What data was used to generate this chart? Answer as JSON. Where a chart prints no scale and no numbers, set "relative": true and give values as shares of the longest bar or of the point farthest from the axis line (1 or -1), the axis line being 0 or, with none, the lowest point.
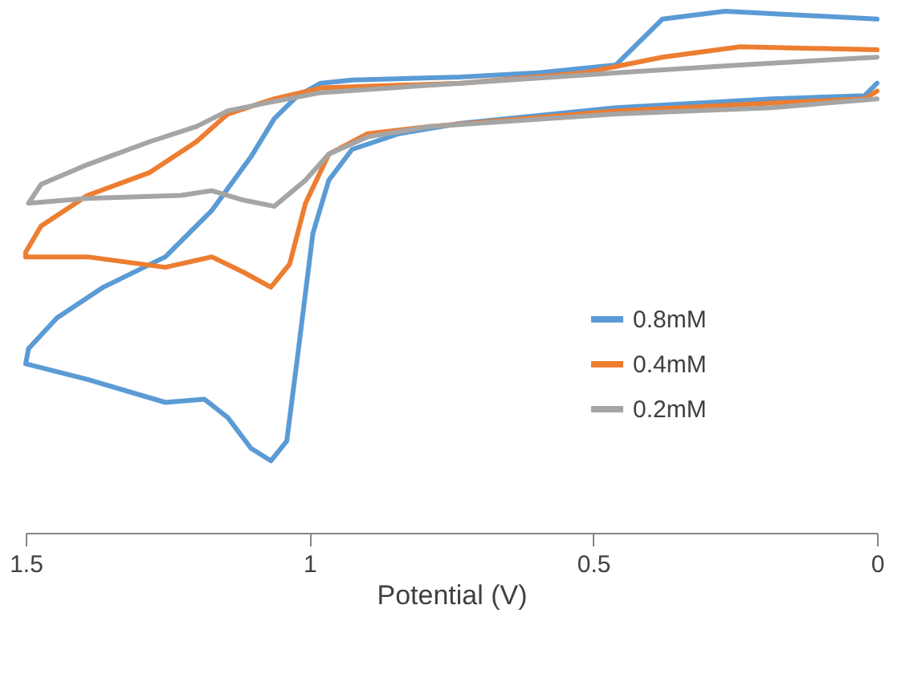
{
  "chart_data": {
    "type": "line",
    "relative": true,
    "xlabel": "Potential (V)",
    "xlim": [
      1.5,
      0
    ],
    "xticks": [
      1.5,
      1,
      0.5,
      0
    ],
    "grid": false,
    "legend": "right",
    "marker": "none",
    "line_style": "solid",
    "series": [
      {
        "name": "0.8mM",
        "color": "#5b9bd5",
        "x": [
          0,
          0.268,
          0.378,
          0.46,
          0.597,
          0.734,
          0.925,
          0.98,
          1.021,
          1.062,
          1.103,
          1.172,
          1.254,
          1.363,
          1.445,
          1.495,
          1.5,
          1.391,
          1.254,
          1.185,
          1.144,
          1.103,
          1.068,
          1.04,
          1.021,
          0.994,
          0.966,
          0.925,
          0.843,
          0.734,
          0.46,
          0.186,
          0.022,
          0
        ],
        "values": [
          0.985,
          1.0,
          0.985,
          0.897,
          0.882,
          0.874,
          0.868,
          0.862,
          0.838,
          0.794,
          0.721,
          0.618,
          0.529,
          0.471,
          0.412,
          0.353,
          0.324,
          0.294,
          0.25,
          0.256,
          0.221,
          0.162,
          0.138,
          0.176,
          0.338,
          0.574,
          0.676,
          0.735,
          0.765,
          0.785,
          0.815,
          0.832,
          0.838,
          0.862
        ]
      },
      {
        "name": "0.4mM",
        "color": "#ed7d31",
        "x": [
          0,
          0.241,
          0.378,
          0.515,
          0.734,
          0.98,
          1.062,
          1.144,
          1.199,
          1.281,
          1.391,
          1.473,
          1.5,
          1.5,
          1.391,
          1.254,
          1.172,
          1.117,
          1.068,
          1.035,
          1.007,
          0.966,
          0.898,
          0.788,
          0.46,
          0.186,
          0.022,
          0
        ],
        "values": [
          0.926,
          0.932,
          0.912,
          0.882,
          0.862,
          0.853,
          0.832,
          0.803,
          0.75,
          0.691,
          0.647,
          0.588,
          0.538,
          0.529,
          0.529,
          0.509,
          0.529,
          0.5,
          0.471,
          0.515,
          0.632,
          0.726,
          0.765,
          0.779,
          0.809,
          0.824,
          0.832,
          0.847
        ]
      },
      {
        "name": "0.2mM",
        "color": "#a5a5a5",
        "x": [
          0,
          0.241,
          0.46,
          0.734,
          0.98,
          1.076,
          1.144,
          1.199,
          1.281,
          1.391,
          1.473,
          1.495,
          1.391,
          1.226,
          1.172,
          1.117,
          1.062,
          1.007,
          0.966,
          0.898,
          0.788,
          0.46,
          0.186,
          0
        ],
        "values": [
          0.912,
          0.897,
          0.882,
          0.862,
          0.844,
          0.824,
          0.809,
          0.779,
          0.75,
          0.706,
          0.668,
          0.632,
          0.641,
          0.647,
          0.656,
          0.638,
          0.626,
          0.676,
          0.726,
          0.759,
          0.779,
          0.803,
          0.815,
          0.832
        ]
      }
    ]
  }
}
